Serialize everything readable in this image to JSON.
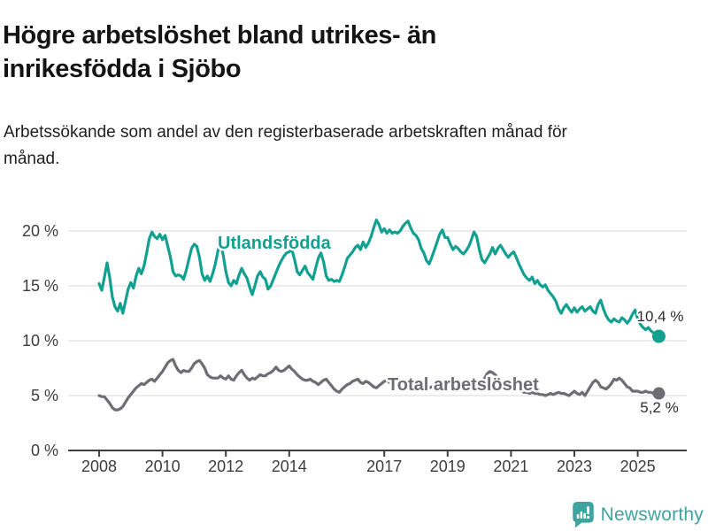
{
  "header": {
    "title": "Högre arbetslöshet bland utrikes- än inrikesfödda i Sjöbo",
    "subtitle": "Arbetssökande som andel av den registerbaserade arbetskraften månad för månad."
  },
  "chart_data": {
    "type": "line",
    "unit": "%",
    "x_start_year": 2008.0,
    "x_step_months": 1,
    "x_end_label": "sep 2025",
    "ylim": [
      0,
      21.5
    ],
    "grid": true,
    "legend_position": "inline-labels",
    "y_ticks": [
      {
        "value": 0,
        "label": "0 %"
      },
      {
        "value": 5,
        "label": "5 %"
      },
      {
        "value": 10,
        "label": "10 %"
      },
      {
        "value": 15,
        "label": "15 %"
      },
      {
        "value": 20,
        "label": "20 %"
      }
    ],
    "x_ticks": [
      {
        "year": 2008,
        "label": "2008"
      },
      {
        "year": 2010,
        "label": "2010"
      },
      {
        "year": 2012,
        "label": "2012"
      },
      {
        "year": 2014,
        "label": "2014"
      },
      {
        "year": 2017,
        "label": "2017"
      },
      {
        "year": 2019,
        "label": "2019"
      },
      {
        "year": 2021,
        "label": "2021"
      },
      {
        "year": 2023,
        "label": "2023"
      },
      {
        "year": 2025,
        "label": "2025"
      }
    ],
    "series": [
      {
        "name": "Utlandsfödda",
        "color": "#12a091",
        "end_value": 10.4,
        "end_label": "10,4 %",
        "values": [
          15.2,
          14.6,
          15.8,
          17.1,
          15.8,
          14.0,
          13.1,
          12.7,
          13.4,
          12.5,
          13.6,
          14.7,
          15.3,
          14.8,
          15.9,
          16.6,
          16.1,
          16.8,
          18.0,
          19.3,
          19.9,
          19.5,
          19.3,
          19.7,
          19.2,
          19.6,
          18.6,
          17.6,
          16.3,
          15.9,
          16.0,
          15.9,
          15.6,
          16.4,
          17.4,
          18.4,
          18.8,
          18.6,
          17.6,
          16.1,
          15.5,
          15.9,
          15.4,
          16.1,
          17.0,
          18.2,
          18.9,
          17.8,
          16.3,
          15.3,
          15.0,
          15.5,
          15.2,
          16.0,
          16.6,
          16.1,
          15.7,
          14.9,
          14.2,
          15.0,
          15.9,
          16.3,
          15.8,
          15.6,
          14.7,
          15.0,
          15.6,
          16.2,
          16.8,
          17.3,
          17.7,
          18.0,
          18.1,
          18.3,
          17.4,
          16.3,
          16.0,
          16.4,
          16.8,
          16.2,
          15.9,
          15.6,
          16.6,
          17.5,
          18.0,
          17.2,
          15.9,
          15.5,
          15.6,
          15.4,
          15.5,
          15.4,
          16.0,
          16.7,
          17.5,
          17.8,
          18.1,
          18.5,
          18.7,
          18.3,
          19.0,
          18.5,
          18.9,
          19.5,
          20.3,
          21.0,
          20.6,
          19.9,
          20.2,
          19.8,
          20.1,
          19.8,
          19.9,
          19.8,
          20.0,
          20.4,
          20.7,
          20.9,
          20.3,
          19.8,
          19.6,
          19.2,
          18.4,
          18.0,
          17.3,
          17.0,
          17.6,
          18.3,
          19.0,
          19.7,
          20.1,
          19.4,
          19.4,
          18.8,
          18.3,
          18.6,
          18.4,
          18.1,
          17.9,
          18.2,
          18.6,
          19.2,
          19.9,
          19.5,
          18.3,
          17.4,
          17.1,
          17.5,
          17.9,
          18.5,
          17.9,
          18.4,
          18.7,
          18.3,
          17.9,
          17.6,
          17.9,
          18.1,
          17.6,
          17.0,
          16.5,
          16.0,
          15.7,
          15.5,
          15.8,
          15.2,
          15.5,
          15.1,
          14.9,
          15.1,
          14.6,
          14.3,
          14.0,
          13.6,
          12.9,
          12.5,
          13.0,
          13.3,
          12.9,
          12.6,
          13.0,
          12.6,
          12.9,
          13.1,
          12.7,
          12.9,
          13.1,
          12.7,
          12.5,
          13.3,
          13.7,
          12.9,
          12.3,
          11.9,
          11.7,
          12.0,
          11.8,
          11.7,
          12.1,
          11.9,
          11.6,
          11.9,
          12.4,
          12.8,
          12.0,
          11.5,
          11.2,
          11.0,
          11.2,
          10.9,
          10.7,
          10.5,
          10.4
        ]
      },
      {
        "name": "Total arbetslöshet",
        "color": "#6d6d73",
        "end_value": 5.2,
        "end_label": "5,2 %",
        "values": [
          5.0,
          4.9,
          4.9,
          4.6,
          4.3,
          3.9,
          3.7,
          3.7,
          3.8,
          4.0,
          4.4,
          4.8,
          5.1,
          5.4,
          5.7,
          5.9,
          6.1,
          6.0,
          6.2,
          6.4,
          6.5,
          6.3,
          6.6,
          6.9,
          7.2,
          7.6,
          8.0,
          8.2,
          8.3,
          7.7,
          7.3,
          7.1,
          7.3,
          7.2,
          7.2,
          7.5,
          7.9,
          8.1,
          8.2,
          7.9,
          7.5,
          6.9,
          6.7,
          6.6,
          6.6,
          6.6,
          6.8,
          6.6,
          6.5,
          6.8,
          6.5,
          6.4,
          6.8,
          7.1,
          7.3,
          6.9,
          6.6,
          6.4,
          6.6,
          6.5,
          6.7,
          6.9,
          6.8,
          6.8,
          7.0,
          7.1,
          7.3,
          7.6,
          7.3,
          7.2,
          7.3,
          7.5,
          7.7,
          7.4,
          7.2,
          6.9,
          6.7,
          6.5,
          6.4,
          6.4,
          6.5,
          6.3,
          6.2,
          6.0,
          6.2,
          6.4,
          6.5,
          6.2,
          5.9,
          5.6,
          5.4,
          5.3,
          5.6,
          5.8,
          6.0,
          6.1,
          6.3,
          6.4,
          6.5,
          6.2,
          6.1,
          6.3,
          6.2,
          6.0,
          5.8,
          5.7,
          5.9,
          6.1,
          6.3,
          6.4,
          6.2,
          6.0,
          5.9,
          5.8,
          5.7,
          5.6,
          5.7,
          5.8,
          5.9,
          6.0,
          6.0,
          6.1,
          6.0,
          5.9,
          5.8,
          5.7,
          5.8,
          5.9,
          5.8,
          5.9,
          6.0,
          5.9,
          5.9,
          5.8,
          5.7,
          5.6,
          5.6,
          5.7,
          5.6,
          5.5,
          5.6,
          5.7,
          5.8,
          6.0,
          6.1,
          6.3,
          6.6,
          7.0,
          7.2,
          7.1,
          6.9,
          6.6,
          6.3,
          6.1,
          5.9,
          5.8,
          5.7,
          5.8,
          5.6,
          5.5,
          5.4,
          5.3,
          5.3,
          5.2,
          5.3,
          5.2,
          5.2,
          5.1,
          5.1,
          5.0,
          5.1,
          5.2,
          5.1,
          5.2,
          5.3,
          5.2,
          5.2,
          5.1,
          5.0,
          5.2,
          5.4,
          5.2,
          5.1,
          5.3,
          5.0,
          5.4,
          5.8,
          6.2,
          6.4,
          6.2,
          5.8,
          5.7,
          5.6,
          5.8,
          6.1,
          6.5,
          6.4,
          6.6,
          6.4,
          6.1,
          5.8,
          5.7,
          5.4,
          5.4,
          5.4,
          5.3,
          5.3,
          5.4,
          5.3,
          5.3,
          5.2,
          5.2,
          5.2
        ]
      }
    ],
    "annotations": {
      "series_label_1": "Utlandsfödda",
      "series_label_2": "Total arbetslöshet",
      "end_label_1": "10,4 %",
      "end_label_2": "5,2 %"
    }
  },
  "footer": {
    "brand": "Newsworthy",
    "logo_color": "#3fa3a0"
  }
}
